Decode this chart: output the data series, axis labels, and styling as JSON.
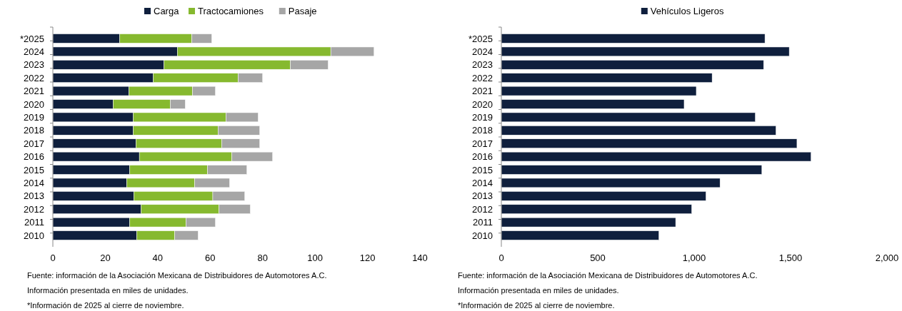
{
  "chart_data": [
    {
      "type": "bar",
      "orientation": "horizontal",
      "stacked": true,
      "legend": "top",
      "categories": [
        "*2025",
        "2024",
        "2023",
        "2022",
        "2021",
        "2020",
        "2019",
        "2018",
        "2017",
        "2016",
        "2015",
        "2014",
        "2013",
        "2012",
        "2011",
        "2010"
      ],
      "series": [
        {
          "name": "Carga",
          "color": "#0f1f3d",
          "values": [
            25.5,
            47.5,
            42.4,
            38.3,
            29,
            23,
            30.7,
            30.7,
            31.7,
            33,
            29.3,
            28.2,
            30.9,
            33.7,
            29.3,
            32
          ]
        },
        {
          "name": "Tractocamiones",
          "color": "#86b92f",
          "values": [
            27.5,
            58.5,
            48.2,
            32.4,
            24.3,
            21.8,
            35.3,
            32.3,
            32.7,
            35.3,
            29.7,
            25.9,
            30.1,
            29.7,
            21.5,
            14.5
          ]
        },
        {
          "name": "Pasaje",
          "color": "#a6a6a6",
          "values": [
            7.6,
            16.5,
            14.4,
            9.3,
            8.7,
            5.7,
            12.3,
            15.9,
            14.5,
            15.5,
            15,
            13.3,
            12.2,
            11.9,
            11.2,
            8.9
          ]
        }
      ],
      "xlim": [
        0,
        140
      ],
      "xticks": [
        0,
        20,
        40,
        60,
        80,
        100,
        120,
        140
      ],
      "annotations": [
        "Fuente: información de la Asociación Mexicana de Distribuidores de Automotores A.C.",
        "Información presentada en miles de unidades.",
        "*Información de 2025 al cierre de noviembre."
      ]
    },
    {
      "type": "bar",
      "orientation": "horizontal",
      "legend": "top",
      "categories": [
        "*2025",
        "2024",
        "2023",
        "2022",
        "2021",
        "2020",
        "2019",
        "2018",
        "2017",
        "2016",
        "2015",
        "2014",
        "2013",
        "2012",
        "2011",
        "2010"
      ],
      "series": [
        {
          "name": "Vehículos Ligeros",
          "color": "#0f1f3d",
          "values": [
            1367,
            1493,
            1360,
            1093,
            1011,
            948,
            1317,
            1424,
            1533,
            1606,
            1351,
            1134,
            1061,
            987,
            904,
            817
          ]
        }
      ],
      "xlim": [
        0,
        2000
      ],
      "xticks": [
        0,
        {
          "value": 500,
          "label": "500"
        },
        {
          "value": 1000,
          "label": "1,000"
        },
        {
          "value": 1500,
          "label": "1,500"
        },
        {
          "value": 2000,
          "label": "2,000"
        }
      ],
      "annotations": [
        "Fuente: información de la Asociación Mexicana de Distribuidores de Automotores A.C.",
        "Información presentada en miles de unidades.",
        "*Información de 2025 al cierre de noviembre."
      ]
    }
  ]
}
